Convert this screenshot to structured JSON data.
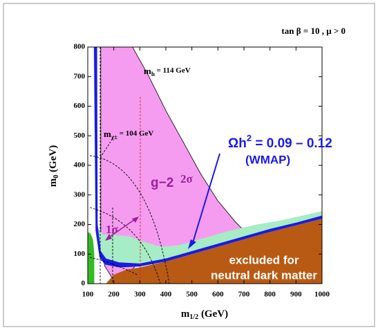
{
  "chart_data": {
    "type": "region",
    "title": "tan β = 10 ,  μ > 0",
    "xlabel": {
      "main": "m",
      "sub": "1/2",
      "unit": " (GeV)"
    },
    "ylabel": {
      "main": "m",
      "sub": "0",
      "unit": " (GeV)"
    },
    "xlim": [
      100,
      1000
    ],
    "xticks": [
      100,
      200,
      300,
      400,
      500,
      600,
      700,
      800,
      900,
      1000
    ],
    "ylim": [
      0,
      800
    ],
    "yticks": [
      0,
      100,
      200,
      300,
      400,
      500,
      600,
      700,
      800
    ],
    "regions": [
      {
        "color": "#f59cf0",
        "x": [
          150,
          272,
          334,
          400,
          466,
          532,
          599,
          665,
          697,
          600,
          500,
          400,
          300,
          240,
          200,
          165,
          150
        ],
        "y": [
          800,
          800,
          702,
          585,
          480,
          374,
          281,
          211,
          182,
          140,
          115,
          100,
          75,
          20,
          10,
          60,
          150
        ]
      },
      {
        "color": "#a6ecc4",
        "x": [
          125,
          128,
          130,
          160,
          200,
          260,
          320,
          380,
          450,
          550,
          650,
          750,
          850,
          950,
          1000,
          1000,
          900,
          800,
          700,
          600,
          500,
          400,
          300,
          220,
          165,
          145,
          130,
          122
        ],
        "y": [
          800,
          800,
          200,
          165,
          165,
          160,
          140,
          125,
          130,
          155,
          180,
          200,
          215,
          235,
          245,
          220,
          197,
          175,
          150,
          125,
          100,
          75,
          58,
          55,
          65,
          90,
          180,
          800
        ]
      },
      {
        "color": "#33bb22",
        "x": [
          100,
          125,
          125,
          120,
          110,
          100
        ],
        "y": [
          0,
          0,
          100,
          150,
          170,
          175
        ]
      },
      {
        "color": "#b85a14",
        "x": [
          170,
          200,
          250,
          300,
          400,
          500,
          600,
          700,
          800,
          900,
          1000,
          1000
        ],
        "y": [
          0,
          30,
          48,
          55,
          75,
          100,
          125,
          150,
          175,
          197,
          220,
          0
        ]
      },
      {
        "color": "#1a1ae6",
        "x": [
          128,
          136,
          138,
          150,
          170,
          220,
          300,
          400,
          500,
          600,
          700,
          800,
          900,
          1000,
          1000,
          900,
          800,
          700,
          600,
          500,
          400,
          300,
          220,
          165,
          145,
          130,
          124
        ],
        "y": [
          800,
          800,
          200,
          110,
          85,
          72,
          68,
          85,
          110,
          135,
          160,
          185,
          206,
          230,
          220,
          197,
          175,
          150,
          125,
          100,
          75,
          58,
          55,
          65,
          90,
          180,
          800
        ]
      }
    ],
    "annotations": {
      "mh": [
        "m",
        "h",
        " = 114 GeV"
      ],
      "mchi": [
        "m",
        "χ±",
        " = 104 GeV"
      ],
      "g2": "g−2",
      "two_sigma": "2σ",
      "one_sigma": "1σ",
      "omega": [
        "Ωh",
        "2",
        " = 0.09  –  0.12"
      ],
      "wmap": "(WMAP)",
      "excluded": [
        "excluded for",
        "neutral dark matter"
      ]
    }
  }
}
